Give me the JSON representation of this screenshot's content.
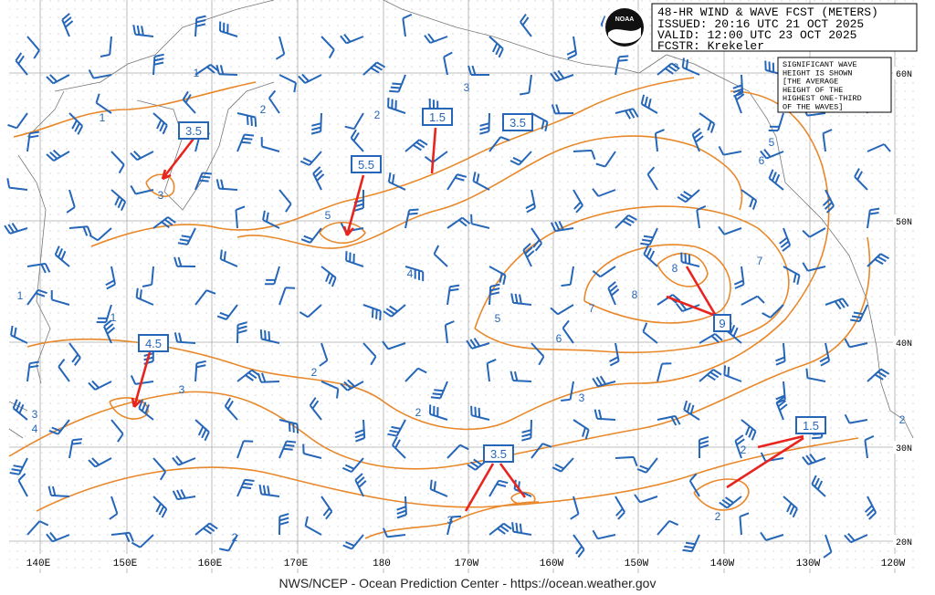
{
  "header": {
    "title": "48-HR WIND & WAVE FCST (METERS)",
    "issued": "ISSUED: 20:16 UTC 21 OCT 2025",
    "valid": "VALID:  12:00 UTC 23 OCT 2025",
    "forecaster": "FCSTR:  Krekeler"
  },
  "logo": "NOAA",
  "note": [
    "SIGNIFICANT WAVE",
    "HEIGHT IS SHOWN",
    "[THE AVERAGE",
    "HEIGHT OF THE",
    "HIGHEST ONE-THIRD",
    "OF THE WAVES]"
  ],
  "longitudes": [
    "140E",
    "150E",
    "160E",
    "170E",
    "180",
    "170W",
    "160W",
    "150W",
    "140W",
    "130W",
    "120W"
  ],
  "latitudes": [
    "60N",
    "50N",
    "40N",
    "30N",
    "20N"
  ],
  "callouts": [
    "3.5",
    "1.5",
    "5.5",
    "3.5",
    "4.5",
    "9",
    "3.5",
    "1.5"
  ],
  "contour_labels": [
    "1",
    "3",
    "1",
    "2",
    "3",
    "2",
    "5",
    "4",
    "5",
    "6",
    "7",
    "8",
    "8",
    "7",
    "6",
    "5",
    "3",
    "2",
    "3",
    "2",
    "3",
    "2",
    "2",
    "3",
    "2",
    "4",
    "3",
    "1",
    "1",
    "2"
  ],
  "footer": "NWS/NCEP - Ocean Prediction Center - https://ocean.weather.gov"
}
